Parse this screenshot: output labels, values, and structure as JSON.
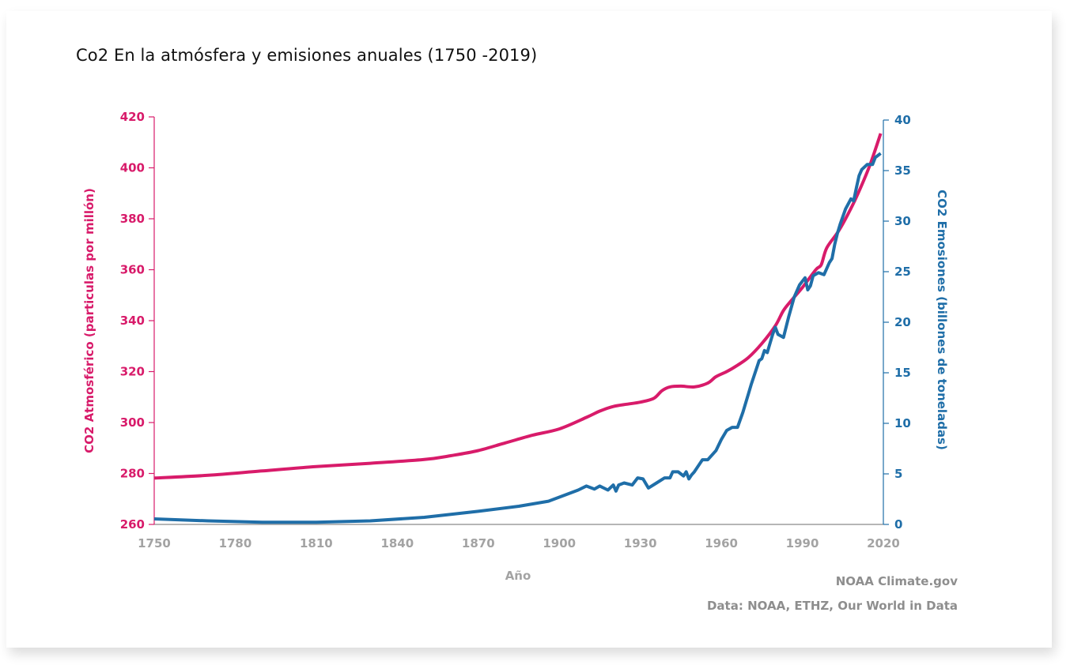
{
  "title": "Co2 En la atmósfera y emisiones anuales (1750 -2019)",
  "credits": {
    "source_org": "NOAA Climate.gov",
    "data_sources": "Data: NOAA, ETHZ, Our World in Data"
  },
  "colors": {
    "co2_ppm": "#d81b6a",
    "emissions": "#1f6ea8",
    "x_axis": "#a3a3a3"
  },
  "chart_data": {
    "type": "line",
    "title": "Co2 En la atmósfera y emisiones anuales (1750 -2019)",
    "xlabel": "Año",
    "ylabel": "CO2 Atmosférico (particulas por millón)",
    "y2label": "CO2 Emosiones (billones de toneladas)",
    "xlim": [
      1750,
      2020
    ],
    "ylim": [
      260,
      420
    ],
    "y2lim": [
      0,
      40
    ],
    "x_ticks": [
      1750,
      1780,
      1810,
      1840,
      1870,
      1900,
      1930,
      1960,
      1990,
      2020
    ],
    "y_ticks": [
      260,
      280,
      300,
      320,
      340,
      360,
      380,
      400,
      420
    ],
    "y2_ticks": [
      0,
      5,
      10,
      15,
      20,
      25,
      30,
      35,
      40
    ],
    "grid": false,
    "legend": "none",
    "series": [
      {
        "name": "CO2 Atmosférico (particulas por millón)",
        "axis": "left",
        "color": "#d81b6a",
        "x": [
          1750,
          1770,
          1790,
          1810,
          1830,
          1850,
          1860,
          1870,
          1880,
          1890,
          1900,
          1910,
          1915,
          1920,
          1925,
          1930,
          1935,
          1938,
          1941,
          1945,
          1950,
          1955,
          1958,
          1962,
          1966,
          1970,
          1975,
          1980,
          1983,
          1986,
          1990,
          1995,
          1997,
          1999,
          2003,
          2006,
          2010,
          2015,
          2019
        ],
        "values": [
          278.2,
          279.3,
          281,
          282.7,
          284,
          285.5,
          287,
          289,
          292,
          295,
          297.5,
          302,
          304.5,
          306.3,
          307.2,
          308,
          309.5,
          312.5,
          314,
          314.3,
          314,
          315.5,
          318,
          320,
          322.5,
          325.5,
          331,
          338,
          344,
          348,
          353,
          360,
          362,
          368.5,
          374.5,
          380,
          388.5,
          401,
          413.5
        ]
      },
      {
        "name": "CO2 Emosiones (billones de toneladas)",
        "axis": "right",
        "color": "#1f6ea8",
        "x": [
          1750,
          1770,
          1790,
          1810,
          1830,
          1850,
          1870,
          1885,
          1896,
          1903,
          1907,
          1910,
          1913,
          1915,
          1918,
          1920,
          1921,
          1922,
          1924,
          1927,
          1929,
          1931,
          1933,
          1936,
          1939,
          1941,
          1942,
          1944,
          1946,
          1947,
          1948,
          1949,
          1950,
          1952,
          1953,
          1955,
          1958,
          1960,
          1962,
          1964,
          1966,
          1968,
          1970,
          1971,
          1973,
          1974,
          1975,
          1976,
          1977,
          1979,
          1980,
          1981,
          1983,
          1985,
          1987,
          1989,
          1991,
          1992,
          1993,
          1994,
          1996,
          1998,
          1999,
          2000,
          2001,
          2002,
          2003,
          2004,
          2006,
          2008,
          2009,
          2010,
          2011,
          2012,
          2014,
          2016,
          2017,
          2019
        ],
        "values": [
          0.55,
          0.35,
          0.22,
          0.22,
          0.35,
          0.7,
          1.3,
          1.8,
          2.3,
          3.0,
          3.4,
          3.8,
          3.5,
          3.8,
          3.4,
          3.9,
          3.3,
          3.9,
          4.1,
          3.9,
          4.6,
          4.5,
          3.6,
          4.1,
          4.6,
          4.6,
          5.2,
          5.2,
          4.8,
          5.2,
          4.5,
          4.9,
          5.2,
          6.0,
          6.4,
          6.4,
          7.3,
          8.4,
          9.3,
          9.6,
          9.6,
          11.1,
          12.9,
          13.8,
          15.4,
          16.2,
          16.4,
          17.2,
          17.0,
          18.8,
          19.5,
          18.8,
          18.5,
          20.6,
          22.5,
          23.7,
          24.4,
          23.2,
          23.6,
          24.6,
          24.9,
          24.7,
          25.3,
          25.9,
          26.3,
          27.7,
          28.8,
          29.7,
          31.2,
          32.2,
          32.0,
          33.3,
          34.5,
          35.1,
          35.6,
          35.6,
          36.3,
          36.7
        ]
      }
    ]
  }
}
